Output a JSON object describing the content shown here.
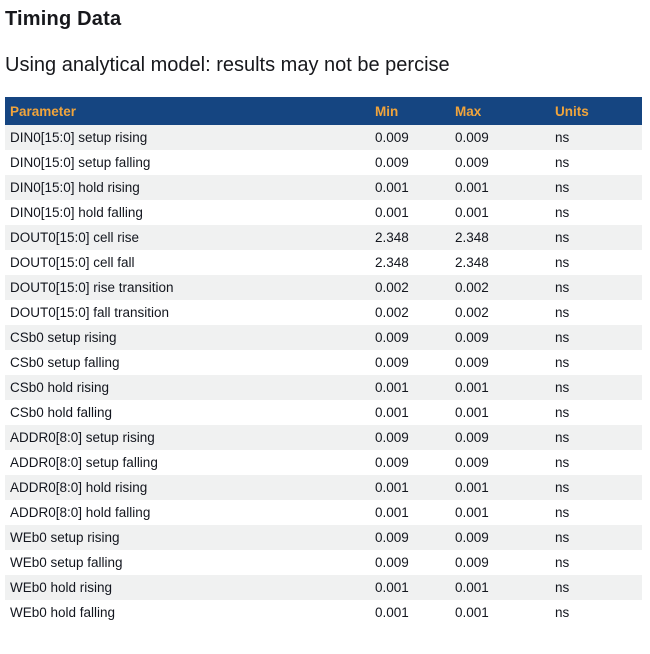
{
  "page": {
    "title": "Timing Data",
    "subtitle": "Using analytical model: results may not be percise"
  },
  "colors": {
    "header_bg": "#154581",
    "header_text": "#F0A43C",
    "row_alt_bg": "#F0F1F1",
    "row_text": "#13161E",
    "heading_text": "#17181C"
  },
  "table": {
    "columns": [
      "Parameter",
      "Min",
      "Max",
      "Units"
    ],
    "rows": [
      {
        "parameter": "DIN0[15:0] setup rising",
        "min": "0.009",
        "max": "0.009",
        "units": "ns"
      },
      {
        "parameter": "DIN0[15:0] setup falling",
        "min": "0.009",
        "max": "0.009",
        "units": "ns"
      },
      {
        "parameter": "DIN0[15:0] hold rising",
        "min": "0.001",
        "max": "0.001",
        "units": "ns"
      },
      {
        "parameter": "DIN0[15:0] hold falling",
        "min": "0.001",
        "max": "0.001",
        "units": "ns"
      },
      {
        "parameter": "DOUT0[15:0] cell rise",
        "min": "2.348",
        "max": "2.348",
        "units": "ns"
      },
      {
        "parameter": "DOUT0[15:0] cell fall",
        "min": "2.348",
        "max": "2.348",
        "units": "ns"
      },
      {
        "parameter": "DOUT0[15:0] rise transition",
        "min": "0.002",
        "max": "0.002",
        "units": "ns"
      },
      {
        "parameter": "DOUT0[15:0] fall transition",
        "min": "0.002",
        "max": "0.002",
        "units": "ns"
      },
      {
        "parameter": "CSb0 setup rising",
        "min": "0.009",
        "max": "0.009",
        "units": "ns"
      },
      {
        "parameter": "CSb0 setup falling",
        "min": "0.009",
        "max": "0.009",
        "units": "ns"
      },
      {
        "parameter": "CSb0 hold rising",
        "min": "0.001",
        "max": "0.001",
        "units": "ns"
      },
      {
        "parameter": "CSb0 hold falling",
        "min": "0.001",
        "max": "0.001",
        "units": "ns"
      },
      {
        "parameter": "ADDR0[8:0] setup rising",
        "min": "0.009",
        "max": "0.009",
        "units": "ns"
      },
      {
        "parameter": "ADDR0[8:0] setup falling",
        "min": "0.009",
        "max": "0.009",
        "units": "ns"
      },
      {
        "parameter": "ADDR0[8:0] hold rising",
        "min": "0.001",
        "max": "0.001",
        "units": "ns"
      },
      {
        "parameter": "ADDR0[8:0] hold falling",
        "min": "0.001",
        "max": "0.001",
        "units": "ns"
      },
      {
        "parameter": "WEb0 setup rising",
        "min": "0.009",
        "max": "0.009",
        "units": "ns"
      },
      {
        "parameter": "WEb0 setup falling",
        "min": "0.009",
        "max": "0.009",
        "units": "ns"
      },
      {
        "parameter": "WEb0 hold rising",
        "min": "0.001",
        "max": "0.001",
        "units": "ns"
      },
      {
        "parameter": "WEb0 hold falling",
        "min": "0.001",
        "max": "0.001",
        "units": "ns"
      }
    ]
  }
}
